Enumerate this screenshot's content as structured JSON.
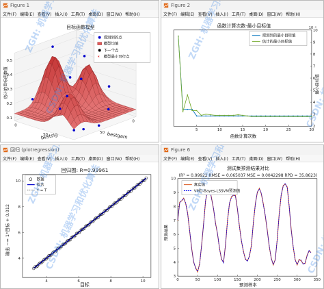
{
  "windows": [
    {
      "title": "Figure 1",
      "menu": [
        "文件(F)",
        "编辑(E)",
        "查看(V)",
        "插入(I)",
        "工具(T)",
        "桌面(D)",
        "窗口(W)",
        "帮助(H)"
      ]
    },
    {
      "title": "Figure 2",
      "menu": [
        "文件(F)",
        "编辑(E)",
        "查看(V)",
        "插入(I)",
        "工具(T)",
        "桌面(D)",
        "窗口(W)",
        "帮助(H)"
      ]
    },
    {
      "title": "回归 (plotregression)",
      "menu": [
        "文件(F)",
        "编辑(E)",
        "查看(V)",
        "插入(I)",
        "工具(T)",
        "桌面(D)",
        "窗口(W)",
        "帮助(H)"
      ]
    },
    {
      "title": "Figure 6",
      "menu": [
        "文件(F)",
        "编辑(E)",
        "查看(V)",
        "插入(I)",
        "工具(T)",
        "桌面(D)",
        "窗口(W)",
        "帮助(H)"
      ]
    }
  ],
  "watermarks": [
    "ZGH: 机器学习和优化算法",
    "CSDN: 机器学习和优化算法"
  ],
  "colors": {
    "accent": "#0072BD",
    "red": "#D95319",
    "green": "#77AC30",
    "purple": "#7E2F8E"
  },
  "chart_data": [
    {
      "type": "surface",
      "title": "目标函数模型",
      "xlabel": "bestsig",
      "ylabel": "bestgam",
      "zlabel": "估计的目标函数值",
      "zticks": [
        "0.1",
        "0.2",
        "0.3",
        "0.4",
        "0.5"
      ],
      "zlim": [
        0.08,
        0.55
      ],
      "xticks": [
        "100",
        "50",
        "0"
      ],
      "yticks": [
        "0",
        "50",
        "100"
      ],
      "legend": [
        "观测到的点",
        "模型均值",
        "下一个点",
        "模型最小可行点"
      ],
      "legend_loc": "top-right",
      "observed_points": [
        [
          0.5,
          0.12,
          0.53
        ],
        [
          0.18,
          0.32,
          0.44
        ],
        [
          0.85,
          0.78,
          0.46
        ],
        [
          0.5,
          0.6,
          0.37
        ],
        [
          0.1,
          0.65,
          0.26
        ],
        [
          0.9,
          0.2,
          0.24
        ],
        [
          0.3,
          0.85,
          0.16
        ],
        [
          0.65,
          0.4,
          0.16
        ],
        [
          0.75,
          0.9,
          0.1
        ],
        [
          0.2,
          0.05,
          0.13
        ],
        [
          0.98,
          0.98,
          0.14
        ],
        [
          0.55,
          0.95,
          0.1
        ]
      ]
    },
    {
      "type": "line",
      "title": "函数计算次数-最小目标值",
      "xlabel": "函数计算次数",
      "ylabel": "最小目标值",
      "exponent": "10⁻³",
      "xlim": [
        0,
        30
      ],
      "ylim": [
        2,
        10
      ],
      "xticks": [
        5,
        10,
        15,
        20,
        25,
        30
      ],
      "yticks": [
        2,
        3,
        4,
        5,
        6,
        7,
        8,
        9,
        10
      ],
      "legend_loc": "top-right",
      "series": [
        {
          "name": "观测到的最小目标值",
          "x": [
            1,
            2,
            3,
            4,
            5,
            6,
            7,
            8,
            9,
            10,
            11,
            12,
            13,
            14,
            15,
            16,
            17,
            18,
            19,
            20,
            21,
            22,
            23,
            24,
            25,
            26,
            27,
            28,
            29,
            30
          ],
          "y": [
            9.5,
            3.4,
            3.4,
            3.4,
            2.85,
            2.85,
            2.85,
            2.85,
            2.85,
            2.85,
            2.85,
            2.85,
            2.85,
            2.85,
            2.85,
            2.85,
            2.85,
            2.85,
            2.85,
            2.85,
            2.85,
            2.85,
            2.85,
            2.85,
            2.85,
            2.85,
            2.85,
            2.85,
            2.85,
            2.85
          ]
        },
        {
          "name": "估计的最小目标值",
          "x": [
            1,
            2,
            3,
            4,
            5,
            6,
            7,
            8,
            9,
            10,
            11,
            12,
            13,
            14,
            15,
            16,
            17,
            18,
            19,
            20,
            21,
            22,
            23,
            24,
            25,
            26,
            27,
            28,
            29,
            30
          ],
          "y": [
            9.5,
            3.2,
            4.6,
            3.3,
            3.3,
            2.9,
            3.0,
            2.95,
            2.9,
            2.9,
            2.9,
            2.9,
            2.9,
            2.95,
            2.9,
            2.85,
            2.8,
            2.8,
            2.8,
            2.8,
            2.8,
            2.8,
            2.8,
            2.8,
            2.8,
            2.8,
            2.8,
            2.8,
            2.8,
            2.8
          ]
        }
      ]
    },
    {
      "type": "scatter",
      "title": "回归图: R=0.99961",
      "xlabel": "目标",
      "ylabel": "输出 ~= 1*目标 + 0.012",
      "xlim": [
        2.5,
        10.5
      ],
      "ylim": [
        2.5,
        10.5
      ],
      "xticks": [
        4,
        6,
        8,
        10
      ],
      "yticks": [
        4,
        6,
        8,
        10
      ],
      "legend": [
        "数据",
        "拟合",
        "Y = T"
      ],
      "legend_loc": "top-left",
      "fit": {
        "slope": 1,
        "intercept": 0.012
      }
    },
    {
      "type": "line",
      "title": "测试集预测结果对比",
      "subtitle": "(R² = 0.99922 RMSE = 0.065037 MSE = 0.0042298 RPD = 35.8623)",
      "xlabel": "预测样本",
      "ylabel": "预测结果",
      "xlim": [
        0,
        350
      ],
      "ylim": [
        3,
        10
      ],
      "xticks": [
        0,
        50,
        100,
        150,
        200,
        250,
        300,
        350
      ],
      "yticks": [
        3,
        4,
        5,
        6,
        7,
        8,
        9,
        10
      ],
      "legend_loc": "top-left",
      "series": [
        {
          "name": "真实值",
          "x": [
            0,
            5,
            10,
            15,
            20,
            25,
            30,
            35,
            40,
            45,
            50,
            55,
            60,
            65,
            70,
            75,
            80,
            85,
            90,
            95,
            100,
            105,
            110,
            115,
            120,
            125,
            130,
            135,
            140,
            145,
            150,
            155,
            160,
            165,
            170,
            175,
            180,
            185,
            190,
            195,
            200,
            205,
            210,
            215,
            220,
            225,
            230,
            235,
            240,
            245,
            250,
            255,
            260,
            265,
            270,
            275,
            280,
            285,
            290,
            295,
            300,
            305,
            310,
            315,
            320,
            325,
            330,
            335
          ],
          "y": [
            7.0,
            8.3,
            8.4,
            8.6,
            8.2,
            7.5,
            6.2,
            5.0,
            4.0,
            3.6,
            3.3,
            3.9,
            5.2,
            6.8,
            8.4,
            9.2,
            9.3,
            8.6,
            7.8,
            6.8,
            6.0,
            5.0,
            4.2,
            4.0,
            5.2,
            7.0,
            8.2,
            8.7,
            8.8,
            8.8,
            7.8,
            6.6,
            5.5,
            4.8,
            4.2,
            4.1,
            4.4,
            5.2,
            6.8,
            8.2,
            9.0,
            9.3,
            8.9,
            8.2,
            7.3,
            6.3,
            5.1,
            4.3,
            3.8,
            4.2,
            5.6,
            7.5,
            8.8,
            9.5,
            9.6,
            9.4,
            8.0,
            6.4,
            5.1,
            4.2,
            3.8,
            4.2,
            4.1,
            3.9,
            3.9,
            4.5,
            4.8,
            4.7
          ]
        },
        {
          "name": "VMD-Bayes-LSSVM预测值",
          "x": [
            0,
            5,
            10,
            15,
            20,
            25,
            30,
            35,
            40,
            45,
            50,
            55,
            60,
            65,
            70,
            75,
            80,
            85,
            90,
            95,
            100,
            105,
            110,
            115,
            120,
            125,
            130,
            135,
            140,
            145,
            150,
            155,
            160,
            165,
            170,
            175,
            180,
            185,
            190,
            195,
            200,
            205,
            210,
            215,
            220,
            225,
            230,
            235,
            240,
            245,
            250,
            255,
            260,
            265,
            270,
            275,
            280,
            285,
            290,
            295,
            300,
            305,
            310,
            315,
            320,
            325,
            330,
            335
          ],
          "y": [
            7.05,
            8.25,
            8.45,
            8.55,
            8.25,
            7.45,
            6.25,
            4.95,
            4.05,
            3.55,
            3.35,
            3.85,
            5.25,
            6.75,
            8.45,
            9.15,
            9.35,
            8.55,
            7.85,
            6.75,
            6.05,
            4.95,
            4.25,
            3.95,
            5.25,
            6.95,
            8.25,
            8.65,
            8.85,
            8.75,
            7.85,
            6.55,
            5.55,
            4.75,
            4.25,
            4.05,
            4.45,
            5.15,
            6.85,
            8.15,
            9.05,
            9.25,
            8.95,
            8.15,
            7.35,
            6.25,
            5.15,
            4.25,
            3.85,
            4.15,
            5.65,
            7.45,
            8.85,
            9.45,
            9.65,
            9.35,
            8.05,
            6.35,
            5.15,
            4.15,
            3.85,
            4.15,
            4.15,
            3.85,
            3.95,
            4.45,
            4.85,
            4.65
          ]
        }
      ]
    }
  ]
}
